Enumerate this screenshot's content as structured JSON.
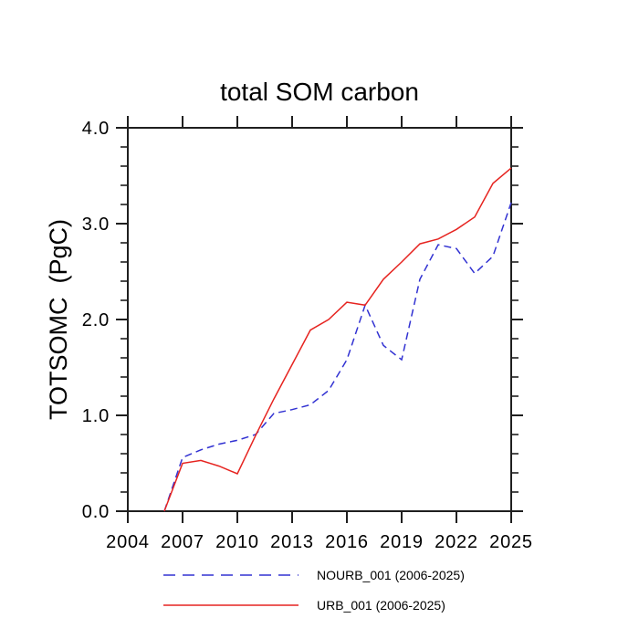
{
  "window": {
    "background": "#ffffff",
    "text_color": "#000000",
    "axis_color": "#1f1f1f"
  },
  "chart_data": {
    "type": "line",
    "title": "total SOM carbon",
    "ylabel": "TOTSOMC  (PgC)",
    "xlabel": "",
    "xlim": [
      2004,
      2025
    ],
    "ylim": [
      0.0,
      4.0
    ],
    "x_major_ticks": [
      2004,
      2007,
      2010,
      2013,
      2016,
      2019,
      2022,
      2025
    ],
    "y_major_ticks": [
      0.0,
      1.0,
      2.0,
      3.0,
      4.0
    ],
    "y_minor_step": 0.2,
    "grid": false,
    "legend_position": "bottom",
    "x": [
      2006,
      2007,
      2008,
      2009,
      2010,
      2011,
      2012,
      2013,
      2014,
      2015,
      2016,
      2017,
      2018,
      2019,
      2020,
      2021,
      2022,
      2023,
      2024,
      2025
    ],
    "series": [
      {
        "id": "NOURB_001",
        "label": "NOURB_001 (2006-2025)",
        "color": "#3232d2",
        "style": "dashed",
        "values": [
          0.0,
          0.56,
          0.64,
          0.7,
          0.74,
          0.8,
          1.02,
          1.06,
          1.11,
          1.26,
          1.58,
          2.15,
          1.73,
          1.58,
          2.42,
          2.78,
          2.74,
          2.48,
          2.66,
          3.22
        ]
      },
      {
        "id": "URB_001",
        "label": "URB_001 (2006-2025)",
        "color": "#e62420",
        "style": "solid",
        "values": [
          0.0,
          0.5,
          0.53,
          0.47,
          0.39,
          0.79,
          1.17,
          1.53,
          1.89,
          2.0,
          2.18,
          2.15,
          2.42,
          2.6,
          2.79,
          2.84,
          2.94,
          3.07,
          3.42,
          3.58
        ]
      }
    ]
  }
}
